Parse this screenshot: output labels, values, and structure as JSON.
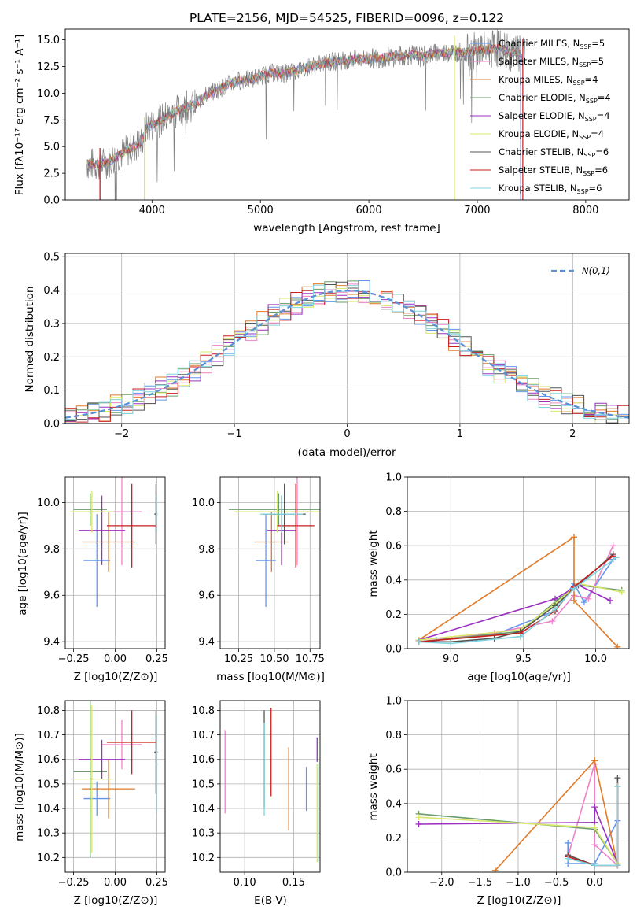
{
  "colors": {
    "Chabrier MILES": "#6495ed",
    "Salpeter MILES": "#ee82c8",
    "Kroupa MILES": "#e07b2a",
    "Chabrier ELODIE": "#6a9b6a",
    "Salpeter ELODIE": "#9b30c0",
    "Kroupa ELODIE": "#d8e86a",
    "Chabrier STELIB": "#555555",
    "Salpeter STELIB": "#c81e1e",
    "Kroupa STELIB": "#7fd4e0"
  },
  "chart_data": [
    {
      "id": "spectrum",
      "type": "line",
      "title": "PLATE=2156, MJD=54525, FIBERID=0096, z=0.122",
      "xlabel": "wavelength [Angstrom, rest frame]",
      "ylabel": "Flux [fλ10⁻¹⁷ erg cm⁻² s⁻¹ A⁻¹]",
      "xlim": [
        3200,
        8400
      ],
      "ylim": [
        0,
        16
      ],
      "xticks": [
        "4000",
        "5000",
        "6000",
        "7000",
        "8000"
      ],
      "yticks": [
        "0.0",
        "2.5",
        "5.0",
        "7.5",
        "10.0",
        "12.5",
        "15.0"
      ],
      "data_series": {
        "name": "",
        "x": [
          3400,
          3500,
          3600,
          3700,
          3800,
          3900,
          3950,
          4000,
          4100,
          4200,
          4300,
          4400,
          4500,
          4600,
          4700,
          4800,
          4900,
          5000,
          5100,
          5200,
          5300,
          5400,
          5500,
          5600,
          5700,
          5800,
          5900,
          6000,
          6100,
          6200,
          6300,
          6400,
          6500,
          6600,
          6700,
          6800,
          6900,
          7000,
          7100,
          7200,
          7300,
          7400
        ],
        "y": [
          3.4,
          3.3,
          3.6,
          4.2,
          4.8,
          5.4,
          6.8,
          7.0,
          7.6,
          8.2,
          8.6,
          9.0,
          9.8,
          10.3,
          10.8,
          11.2,
          11.3,
          11.6,
          11.9,
          11.8,
          12.0,
          12.4,
          12.6,
          12.8,
          13.0,
          13.1,
          13.2,
          13.2,
          13.3,
          13.4,
          13.5,
          13.6,
          13.4,
          13.7,
          13.8,
          13.9,
          13.8,
          14.0,
          14.1,
          14.2,
          13.8,
          13.6
        ]
      },
      "legend": [
        "Chabrier MILES, N_SSP=5",
        "Salpeter MILES, N_SSP=5",
        "Kroupa MILES, N_SSP=4",
        "Chabrier ELODIE, N_SSP=4",
        "Salpeter ELODIE, N_SSP=4",
        "Kroupa ELODIE, N_SSP=4",
        "Chabrier STELIB, N_SSP=6",
        "Salpeter STELIB, N_SSP=6",
        "Kroupa STELIB, N_SSP=6"
      ],
      "legend_position": "upper-right",
      "legend_labels": [
        {
          "name": "Chabrier MILES",
          "n": "5"
        },
        {
          "name": "Salpeter MILES",
          "n": "5"
        },
        {
          "name": "Kroupa MILES",
          "n": "4"
        },
        {
          "name": "Chabrier ELODIE",
          "n": "4"
        },
        {
          "name": "Salpeter ELODIE",
          "n": "4"
        },
        {
          "name": "Kroupa ELODIE",
          "n": "4"
        },
        {
          "name": "Chabrier STELIB",
          "n": "6"
        },
        {
          "name": "Salpeter STELIB",
          "n": "6"
        },
        {
          "name": "Kroupa STELIB",
          "n": "6"
        }
      ],
      "cutoffs": [
        {
          "model": "Chabrier MILES",
          "x_start": 3520,
          "x_end": 7400
        },
        {
          "model": "Kroupa ELODIE",
          "x_start": 3930,
          "x_end": 6790
        },
        {
          "model": "Salpeter STELIB",
          "x_start": 3520,
          "x_end": 7420
        }
      ]
    },
    {
      "id": "residuals",
      "type": "histogram",
      "xlabel": "(data-model)/error",
      "ylabel": "Normed distribution",
      "xlim": [
        -2.5,
        2.5
      ],
      "ylim": [
        0,
        0.51
      ],
      "xticks": [
        "−2",
        "−1",
        "0",
        "1",
        "2"
      ],
      "yticks": [
        "0.0",
        "0.1",
        "0.2",
        "0.3",
        "0.4",
        "0.5"
      ],
      "legend": "N(0,1)",
      "legend_position": "upper-right",
      "bin_start": -2.5,
      "bin_width": 0.1,
      "gaussian": {
        "mean": 0,
        "sigma": 1
      }
    },
    {
      "id": "age-vs-z",
      "type": "errorbar",
      "xlabel": "Z [log10(Z/Z⊙)]",
      "ylabel": "age [log10(age/yr)]",
      "xlim": [
        -0.3,
        0.3
      ],
      "ylim": [
        9.37,
        10.11
      ],
      "xticks": [
        "−0.25",
        "0.00",
        "0.25"
      ],
      "yticks": [
        "9.4",
        "9.6",
        "9.8",
        "10.0"
      ],
      "points": [
        {
          "model": "Chabrier MILES",
          "x": -0.11,
          "xerr": 0.08,
          "y": 9.75,
          "yerr": 0.2
        },
        {
          "model": "Salpeter MILES",
          "x": 0.04,
          "xerr": 0.12,
          "y": 9.96,
          "yerr": 0.23
        },
        {
          "model": "Kroupa MILES",
          "x": -0.04,
          "xerr": 0.16,
          "y": 9.83,
          "yerr": 0.13
        },
        {
          "model": "Chabrier ELODIE",
          "x": -0.15,
          "xerr": 0.1,
          "y": 9.97,
          "yerr": 0.07
        },
        {
          "model": "Salpeter ELODIE",
          "x": -0.08,
          "xerr": 0.14,
          "y": 9.88,
          "yerr": 0.15
        },
        {
          "model": "Kroupa ELODIE",
          "x": -0.14,
          "xerr": 0.13,
          "y": 9.96,
          "yerr": 0.09
        },
        {
          "model": "Chabrier STELIB",
          "x": 0.245,
          "xerr": 0.01,
          "y": 9.95,
          "yerr": 0.13
        },
        {
          "model": "Salpeter STELIB",
          "x": 0.1,
          "xerr": 0.15,
          "y": 9.9,
          "yerr": 0.18
        },
        {
          "model": "Kroupa STELIB",
          "x": 0.25,
          "xerr": 0.005,
          "y": 9.95,
          "yerr": 0.08
        }
      ]
    },
    {
      "id": "age-vs-mass",
      "type": "errorbar",
      "xlabel": "mass [log10(M/M⊙)]",
      "ylabel": "",
      "xlim": [
        10.12,
        10.82
      ],
      "ylim": [
        9.37,
        10.11
      ],
      "xticks": [
        "10.25",
        "10.50",
        "10.75"
      ],
      "yticks": [
        "9.4",
        "9.6",
        "9.8",
        "10.0"
      ],
      "points": [
        {
          "model": "Chabrier MILES",
          "x": 10.44,
          "xerr": 0.07,
          "y": 9.75,
          "yerr": 0.2
        },
        {
          "model": "Salpeter MILES",
          "x": 10.66,
          "xerr": 0.1,
          "y": 9.96,
          "yerr": 0.23
        },
        {
          "model": "Kroupa MILES",
          "x": 10.48,
          "xerr": 0.12,
          "y": 9.83,
          "yerr": 0.13
        },
        {
          "model": "Chabrier ELODIE",
          "x": 10.53,
          "xerr": 0.35,
          "y": 9.97,
          "yerr": 0.07
        },
        {
          "model": "Salpeter ELODIE",
          "x": 10.55,
          "xerr": 0.1,
          "y": 9.88,
          "yerr": 0.15
        },
        {
          "model": "Kroupa ELODIE",
          "x": 10.52,
          "xerr": 0.3,
          "y": 9.96,
          "yerr": 0.09
        },
        {
          "model": "Chabrier STELIB",
          "x": 10.57,
          "xerr": 0.15,
          "y": 9.95,
          "yerr": 0.13
        },
        {
          "model": "Salpeter STELIB",
          "x": 10.65,
          "xerr": 0.13,
          "y": 9.9,
          "yerr": 0.18
        },
        {
          "model": "Kroupa STELIB",
          "x": 10.55,
          "xerr": 0.15,
          "y": 9.95,
          "yerr": 0.08
        }
      ]
    },
    {
      "id": "mass-weight-vs-age",
      "type": "line",
      "xlabel": "age [log10(age/yr)]",
      "ylabel": "mass weight",
      "xlim": [
        8.7,
        10.23
      ],
      "ylim": [
        0,
        1
      ],
      "xticks": [
        "9.0",
        "9.5",
        "10.0"
      ],
      "yticks": [
        "0.0",
        "0.2",
        "0.4",
        "0.6",
        "0.8",
        "1.0"
      ],
      "series": [
        {
          "model": "Chabrier MILES",
          "x": [
            8.78,
            8.9,
            9.3,
            9.72,
            9.85,
            9.92,
            10.12
          ],
          "y": [
            0.04,
            0.05,
            0.08,
            0.22,
            0.38,
            0.27,
            0.52
          ]
        },
        {
          "model": "Salpeter MILES",
          "x": [
            8.78,
            9.3,
            9.7,
            9.85,
            9.95,
            10.12
          ],
          "y": [
            0.04,
            0.09,
            0.16,
            0.31,
            0.29,
            0.6
          ]
        },
        {
          "model": "Kroupa MILES",
          "x": [
            8.78,
            9.85,
            9.85,
            10.15
          ],
          "y": [
            0.05,
            0.65,
            0.28,
            0.01
          ]
        },
        {
          "model": "Chabrier ELODIE",
          "x": [
            8.78,
            9.48,
            9.73,
            9.88,
            10.18
          ],
          "y": [
            0.04,
            0.1,
            0.28,
            0.37,
            0.34
          ]
        },
        {
          "model": "Salpeter ELODIE",
          "x": [
            8.78,
            9.72,
            9.88,
            10.1
          ],
          "y": [
            0.05,
            0.29,
            0.37,
            0.28
          ]
        },
        {
          "model": "Kroupa ELODIE",
          "x": [
            8.78,
            9.48,
            9.72,
            9.88,
            10.18
          ],
          "y": [
            0.05,
            0.11,
            0.26,
            0.38,
            0.33
          ]
        },
        {
          "model": "Chabrier STELIB",
          "x": [
            8.78,
            9.0,
            9.3,
            9.48,
            9.72,
            10.12
          ],
          "y": [
            0.04,
            0.04,
            0.06,
            0.1,
            0.25,
            0.55
          ]
        },
        {
          "model": "Salpeter STELIB",
          "x": [
            8.78,
            9.48,
            9.72,
            9.85,
            10.12
          ],
          "y": [
            0.04,
            0.09,
            0.22,
            0.36,
            0.54
          ]
        },
        {
          "model": "Kroupa STELIB",
          "x": [
            8.78,
            9.0,
            9.48,
            9.72,
            9.85,
            10.14
          ],
          "y": [
            0.04,
            0.03,
            0.07,
            0.23,
            0.35,
            0.53
          ]
        }
      ]
    },
    {
      "id": "mass-vs-z",
      "type": "errorbar",
      "xlabel": "Z [log10(Z/Z⊙)]",
      "ylabel": "mass [log10(M/M⊙)]",
      "xlim": [
        -0.3,
        0.3
      ],
      "ylim": [
        10.14,
        10.84
      ],
      "xticks": [
        "−0.25",
        "0.00",
        "0.25"
      ],
      "yticks": [
        "10.2",
        "10.3",
        "10.4",
        "10.5",
        "10.6",
        "10.7",
        "10.8"
      ],
      "points": [
        {
          "model": "Chabrier MILES",
          "x": -0.11,
          "xerr": 0.08,
          "y": 10.44,
          "yerr": 0.07
        },
        {
          "model": "Salpeter MILES",
          "x": 0.04,
          "xerr": 0.12,
          "y": 10.66,
          "yerr": 0.1
        },
        {
          "model": "Kroupa MILES",
          "x": -0.04,
          "xerr": 0.16,
          "y": 10.48,
          "yerr": 0.12
        },
        {
          "model": "Chabrier ELODIE",
          "x": -0.15,
          "xerr": 0.1,
          "y": 10.55,
          "yerr": 0.35
        },
        {
          "model": "Salpeter ELODIE",
          "x": -0.08,
          "xerr": 0.14,
          "y": 10.6,
          "yerr": 0.08
        },
        {
          "model": "Kroupa ELODIE",
          "x": -0.14,
          "xerr": 0.13,
          "y": 10.52,
          "yerr": 0.3
        },
        {
          "model": "Chabrier STELIB",
          "x": 0.245,
          "xerr": 0.01,
          "y": 10.63,
          "yerr": 0.17
        },
        {
          "model": "Salpeter STELIB",
          "x": 0.1,
          "xerr": 0.15,
          "y": 10.67,
          "yerr": 0.13
        },
        {
          "model": "Kroupa STELIB",
          "x": 0.25,
          "xerr": 0.005,
          "y": 10.58,
          "yerr": 0.2
        }
      ]
    },
    {
      "id": "mass-vs-ebv",
      "type": "errorbar",
      "xlabel": "E(B-V)",
      "ylabel": "",
      "xlim": [
        0.075,
        0.177
      ],
      "ylim": [
        10.14,
        10.84
      ],
      "xticks": [
        "0.10",
        "0.15"
      ],
      "yticks": [
        "10.2",
        "10.3",
        "10.4",
        "10.5",
        "10.6",
        "10.7",
        "10.8"
      ],
      "points": [
        {
          "model": "Chabrier MILES",
          "x": 0.163,
          "xerr": 0,
          "y": 10.48,
          "yerr": 0.09
        },
        {
          "model": "Salpeter MILES",
          "x": 0.08,
          "xerr": 0,
          "y": 10.55,
          "yerr": 0.17
        },
        {
          "model": "Kroupa MILES",
          "x": 0.145,
          "xerr": 0,
          "y": 10.48,
          "yerr": 0.17
        },
        {
          "model": "Chabrier ELODIE",
          "x": 0.175,
          "xerr": 0,
          "y": 10.38,
          "yerr": 0.2
        },
        {
          "model": "Salpeter ELODIE",
          "x": 0.174,
          "xerr": 0,
          "y": 10.64,
          "yerr": 0.05
        },
        {
          "model": "Kroupa ELODIE",
          "x": 0.174,
          "xerr": 0,
          "y": 10.38,
          "yerr": 0.2
        },
        {
          "model": "Chabrier STELIB",
          "x": 0.12,
          "xerr": 0,
          "y": 10.6,
          "yerr": 0.2
        },
        {
          "model": "Salpeter STELIB",
          "x": 0.127,
          "xerr": 0,
          "y": 10.63,
          "yerr": 0.18
        },
        {
          "model": "Kroupa STELIB",
          "x": 0.12,
          "xerr": 0,
          "y": 10.56,
          "yerr": 0.19
        }
      ]
    },
    {
      "id": "mass-weight-vs-z",
      "type": "line",
      "xlabel": "Z [log10(Z/Z⊙)]",
      "ylabel": "mass weight",
      "xlim": [
        -2.45,
        0.45
      ],
      "ylim": [
        0,
        1
      ],
      "xticks": [
        "−2.0",
        "−1.5",
        "−1.0",
        "−0.5",
        "0.0"
      ],
      "yticks": [
        "0.0",
        "0.2",
        "0.4",
        "0.6",
        "0.8",
        "1.0"
      ],
      "series": [
        {
          "model": "Chabrier MILES",
          "x": [
            -0.35,
            -0.35,
            0.0,
            0.3
          ],
          "y": [
            0.17,
            0.05,
            0.05,
            0.3
          ]
        },
        {
          "model": "Salpeter MILES",
          "x": [
            -0.35,
            0.0,
            0.0,
            0.3
          ],
          "y": [
            0.09,
            0.63,
            0.16,
            0.04
          ]
        },
        {
          "model": "Kroupa MILES",
          "x": [
            -1.3,
            0.0,
            0.3
          ],
          "y": [
            0.01,
            0.65,
            0.04
          ]
        },
        {
          "model": "Chabrier ELODIE",
          "x": [
            -2.3,
            0.0,
            0.3
          ],
          "y": [
            0.34,
            0.25,
            0.05
          ]
        },
        {
          "model": "Salpeter ELODIE",
          "x": [
            -2.3,
            0.0,
            0.0,
            0.3
          ],
          "y": [
            0.28,
            0.29,
            0.38,
            0.05
          ]
        },
        {
          "model": "Kroupa ELODIE",
          "x": [
            -2.3,
            0.0,
            0.3
          ],
          "y": [
            0.32,
            0.26,
            0.05
          ]
        },
        {
          "model": "Chabrier STELIB",
          "x": [
            -0.35,
            0.0,
            0.3,
            0.3
          ],
          "y": [
            0.1,
            0.04,
            0.04,
            0.55
          ]
        },
        {
          "model": "Salpeter STELIB",
          "x": [
            -0.35,
            0.0,
            0.3,
            0.3
          ],
          "y": [
            0.09,
            0.04,
            0.04,
            0.5
          ]
        },
        {
          "model": "Kroupa STELIB",
          "x": [
            -0.35,
            0.0,
            0.3,
            0.3
          ],
          "y": [
            0.08,
            0.04,
            0.04,
            0.5
          ]
        }
      ]
    }
  ]
}
